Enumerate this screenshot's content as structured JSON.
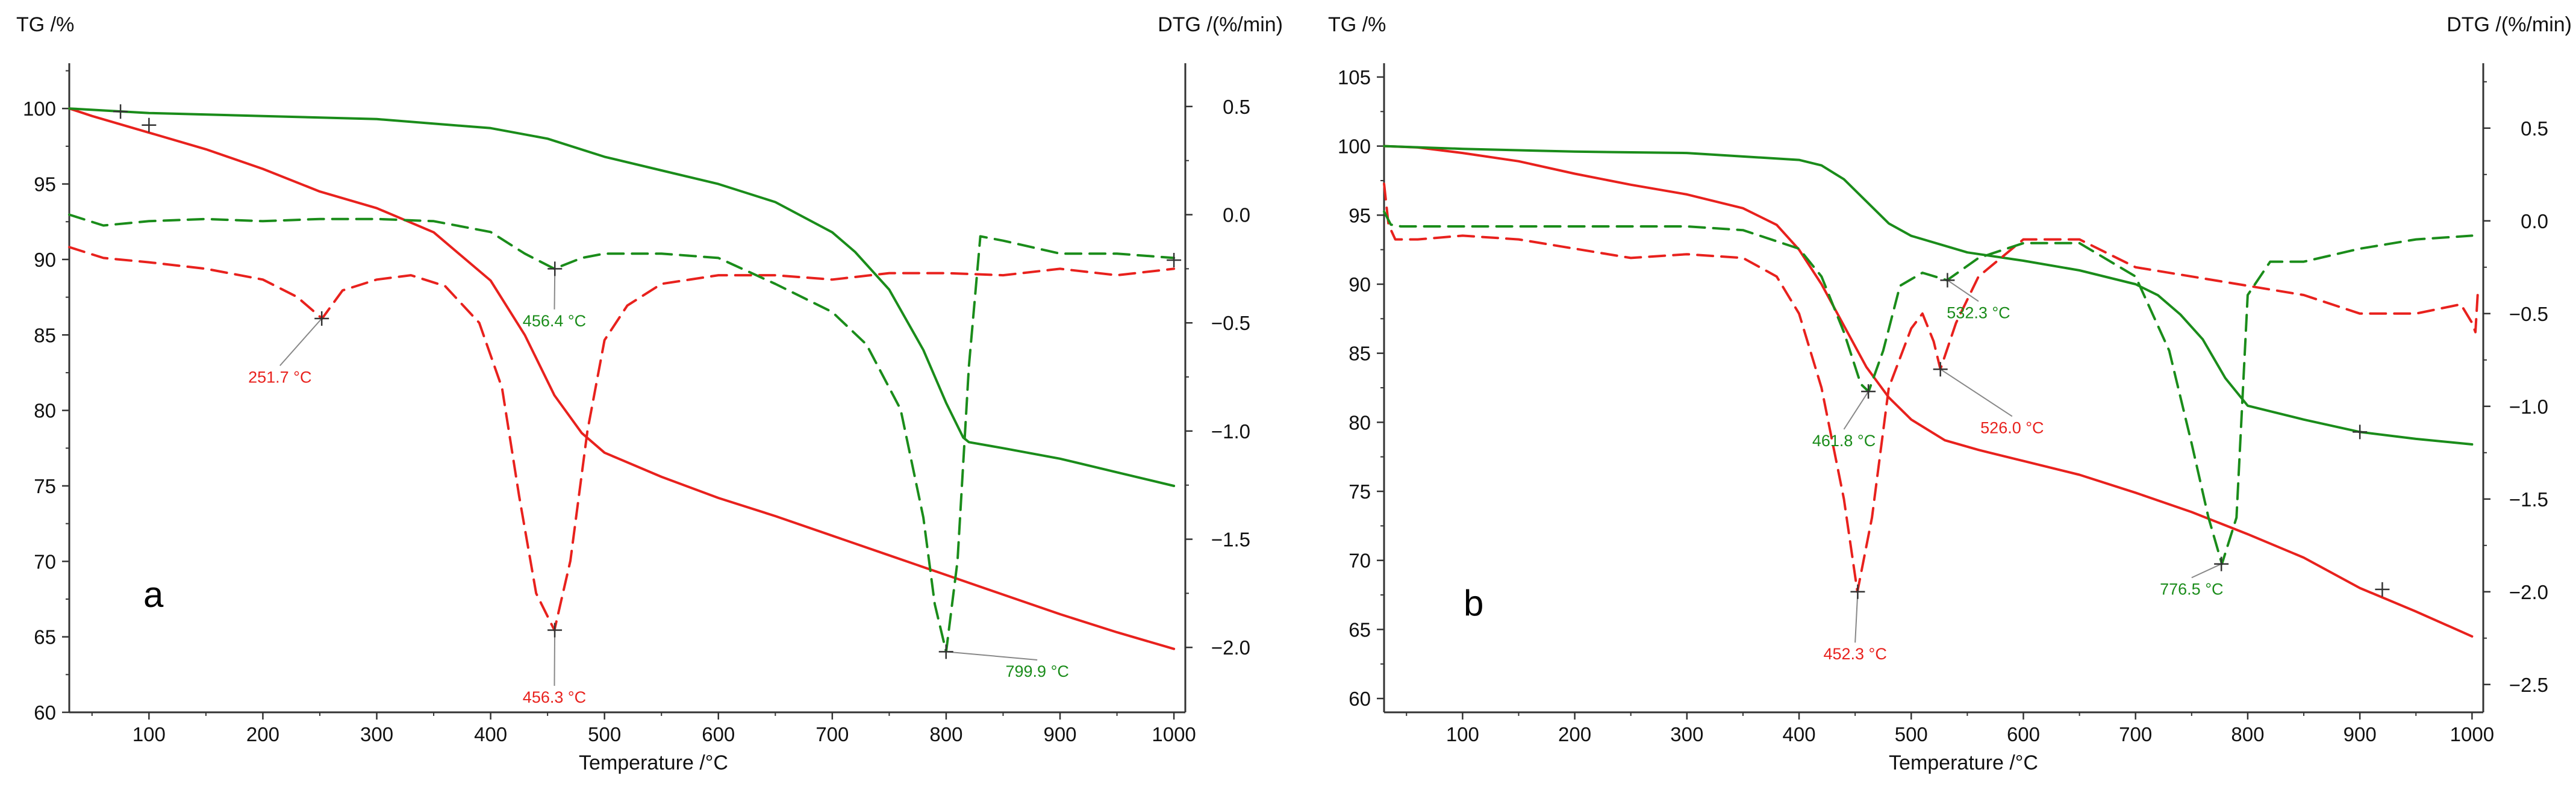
{
  "chart_data": [
    {
      "panel": "a",
      "type": "line",
      "xlabel": "Temperature /°C",
      "ylabel_left": "TG /%",
      "ylabel_right": "DTG /(%/min)",
      "xlim": [
        30,
        1010
      ],
      "ylim_left": [
        60,
        103
      ],
      "ylim_right": [
        -2.3,
        0.7
      ],
      "xticks": [
        100,
        200,
        300,
        400,
        500,
        600,
        700,
        800,
        900,
        1000
      ],
      "yticks_left": [
        60,
        65,
        70,
        75,
        80,
        85,
        90,
        95,
        100
      ],
      "yticks_right": [
        -2.0,
        -1.5,
        -1.0,
        -0.5,
        0.0,
        0.5
      ],
      "ytick_labels_left": [
        "60",
        "65",
        "70",
        "75",
        "80",
        "85",
        "90",
        "95",
        "100"
      ],
      "ytick_labels_right": [
        "−2.0",
        "−1.5",
        "−1.0",
        "−0.5",
        "0.0",
        "0.5"
      ],
      "series": [
        {
          "name": "TG red",
          "axis": "left",
          "color": "#e8211d",
          "dash": false,
          "x": [
            30,
            50,
            100,
            150,
            200,
            250,
            300,
            350,
            400,
            430,
            456,
            480,
            500,
            550,
            600,
            650,
            700,
            750,
            800,
            850,
            900,
            950,
            1000
          ],
          "y": [
            100.0,
            99.5,
            98.4,
            97.3,
            96.0,
            94.5,
            93.4,
            91.8,
            88.6,
            85.0,
            81.0,
            78.5,
            77.2,
            75.6,
            74.2,
            73.0,
            71.7,
            70.4,
            69.1,
            67.8,
            66.5,
            65.3,
            64.2
          ]
        },
        {
          "name": "TG green",
          "axis": "left",
          "color": "#1a8c1a",
          "dash": false,
          "x": [
            30,
            100,
            200,
            300,
            400,
            450,
            500,
            550,
            600,
            650,
            700,
            720,
            750,
            780,
            800,
            815,
            820,
            850,
            900,
            950,
            1000
          ],
          "y": [
            100.0,
            99.7,
            99.5,
            99.3,
            98.7,
            98.0,
            96.8,
            95.9,
            95.0,
            93.8,
            91.8,
            90.5,
            88.0,
            84.0,
            80.5,
            78.2,
            77.9,
            77.5,
            76.8,
            75.9,
            75.0
          ]
        },
        {
          "name": "DTG red",
          "axis": "right",
          "color": "#e8211d",
          "dash": true,
          "x": [
            30,
            60,
            100,
            150,
            200,
            230,
            252,
            270,
            300,
            330,
            360,
            390,
            410,
            425,
            440,
            456,
            470,
            485,
            500,
            520,
            550,
            600,
            650,
            700,
            750,
            800,
            850,
            900,
            950,
            1000
          ],
          "y": [
            -0.15,
            -0.2,
            -0.22,
            -0.25,
            -0.3,
            -0.38,
            -0.48,
            -0.35,
            -0.3,
            -0.28,
            -0.33,
            -0.5,
            -0.8,
            -1.3,
            -1.75,
            -1.92,
            -1.6,
            -1.0,
            -0.58,
            -0.42,
            -0.32,
            -0.28,
            -0.28,
            -0.3,
            -0.27,
            -0.27,
            -0.28,
            -0.25,
            -0.28,
            -0.25
          ]
        },
        {
          "name": "DTG green",
          "axis": "right",
          "color": "#1a8c1a",
          "dash": true,
          "x": [
            30,
            60,
            100,
            150,
            200,
            250,
            300,
            350,
            400,
            430,
            456,
            480,
            500,
            550,
            600,
            650,
            700,
            730,
            760,
            780,
            790,
            800,
            810,
            820,
            830,
            850,
            900,
            950,
            1000
          ],
          "y": [
            -0.0,
            -0.05,
            -0.03,
            -0.02,
            -0.03,
            -0.02,
            -0.02,
            -0.03,
            -0.08,
            -0.18,
            -0.25,
            -0.2,
            -0.18,
            -0.18,
            -0.2,
            -0.32,
            -0.45,
            -0.6,
            -0.9,
            -1.4,
            -1.8,
            -2.02,
            -1.6,
            -0.7,
            -0.1,
            -0.12,
            -0.18,
            -0.18,
            -0.2
          ]
        }
      ],
      "annotations": [
        {
          "text": "251.7 °C",
          "color": "#e8211d",
          "x": 251.7,
          "y": -0.48,
          "axis": "right",
          "label_x": 215,
          "label_y": -0.72
        },
        {
          "text": "456.3 °C",
          "color": "#e8211d",
          "x": 456.3,
          "y": -1.92,
          "axis": "right",
          "label_x": 456,
          "label_y": -2.2
        },
        {
          "text": "456.4 °C",
          "color": "#1a8c1a",
          "x": 456.4,
          "y": -0.25,
          "axis": "right",
          "label_x": 456,
          "label_y": -0.46
        },
        {
          "text": "799.9 °C",
          "color": "#1a8c1a",
          "x": 799.9,
          "y": -2.02,
          "axis": "right",
          "label_x": 880,
          "label_y": -2.08
        }
      ],
      "tick_markers": [
        {
          "x": 75,
          "y": 99.8,
          "axis": "left"
        },
        {
          "x": 100,
          "y": 98.9,
          "axis": "left"
        },
        {
          "x": 1000,
          "y": -0.21,
          "axis": "right"
        }
      ]
    },
    {
      "panel": "b",
      "type": "line",
      "xlabel": "Temperature /°C",
      "ylabel_left": "TG /%",
      "ylabel_right": "DTG /(%/min)",
      "xlim": [
        30,
        1010
      ],
      "ylim_left": [
        59,
        106
      ],
      "ylim_right": [
        -2.65,
        0.85
      ],
      "xticks": [
        100,
        200,
        300,
        400,
        500,
        600,
        700,
        800,
        900,
        1000
      ],
      "yticks_left": [
        60,
        65,
        70,
        75,
        80,
        85,
        90,
        95,
        100,
        105
      ],
      "yticks_right": [
        -2.5,
        -2.0,
        -1.5,
        -1.0,
        -0.5,
        0.0,
        0.5
      ],
      "ytick_labels_left": [
        "60",
        "65",
        "70",
        "75",
        "80",
        "85",
        "90",
        "95",
        "100",
        "105"
      ],
      "ytick_labels_right": [
        "−2.5",
        "−2.0",
        "−1.5",
        "−1.0",
        "−0.5",
        "0.0",
        "0.5"
      ],
      "series": [
        {
          "name": "TG red",
          "axis": "left",
          "color": "#e8211d",
          "dash": false,
          "x": [
            30,
            60,
            100,
            150,
            200,
            250,
            300,
            350,
            380,
            400,
            420,
            440,
            460,
            480,
            500,
            530,
            560,
            600,
            650,
            700,
            750,
            800,
            850,
            900,
            950,
            1000
          ],
          "y": [
            100.0,
            99.9,
            99.5,
            98.9,
            98.0,
            97.2,
            96.5,
            95.5,
            94.3,
            92.5,
            90.0,
            87.0,
            84.0,
            81.8,
            80.2,
            78.7,
            78.0,
            77.2,
            76.2,
            74.9,
            73.5,
            71.9,
            70.2,
            68.0,
            66.3,
            64.5
          ]
        },
        {
          "name": "TG green",
          "axis": "left",
          "color": "#1a8c1a",
          "dash": false,
          "x": [
            30,
            100,
            200,
            300,
            400,
            420,
            440,
            460,
            480,
            500,
            550,
            600,
            650,
            700,
            720,
            740,
            760,
            780,
            800,
            850,
            900,
            950,
            1000
          ],
          "y": [
            100.0,
            99.8,
            99.6,
            99.5,
            99.0,
            98.6,
            97.6,
            96.0,
            94.4,
            93.5,
            92.3,
            91.7,
            91.0,
            90.0,
            89.2,
            87.8,
            86.0,
            83.2,
            81.2,
            80.2,
            79.3,
            78.8,
            78.4
          ]
        },
        {
          "name": "DTG red",
          "axis": "right",
          "color": "#e8211d",
          "dash": true,
          "x": [
            30,
            34,
            40,
            60,
            100,
            150,
            200,
            250,
            300,
            350,
            380,
            400,
            420,
            440,
            452,
            465,
            480,
            500,
            510,
            520,
            526,
            540,
            560,
            600,
            650,
            700,
            750,
            800,
            850,
            900,
            950,
            990,
            1000,
            1003,
            1005
          ],
          "y": [
            0.2,
            -0.02,
            -0.1,
            -0.1,
            -0.08,
            -0.1,
            -0.15,
            -0.2,
            -0.18,
            -0.2,
            -0.3,
            -0.5,
            -0.9,
            -1.5,
            -2.0,
            -1.6,
            -0.9,
            -0.58,
            -0.5,
            -0.65,
            -0.8,
            -0.55,
            -0.3,
            -0.1,
            -0.1,
            -0.25,
            -0.3,
            -0.35,
            -0.4,
            -0.5,
            -0.5,
            -0.45,
            -0.55,
            -0.6,
            -0.4
          ]
        },
        {
          "name": "DTG green",
          "axis": "right",
          "color": "#1a8c1a",
          "dash": true,
          "x": [
            30,
            36,
            45,
            100,
            200,
            300,
            350,
            400,
            420,
            440,
            455,
            462,
            475,
            490,
            510,
            532,
            560,
            600,
            650,
            700,
            730,
            750,
            765,
            777,
            790,
            800,
            820,
            850,
            900,
            950,
            1000
          ],
          "y": [
            0.05,
            -0.02,
            -0.03,
            -0.03,
            -0.03,
            -0.03,
            -0.05,
            -0.15,
            -0.3,
            -0.6,
            -0.88,
            -0.92,
            -0.7,
            -0.35,
            -0.28,
            -0.32,
            -0.2,
            -0.12,
            -0.12,
            -0.3,
            -0.7,
            -1.2,
            -1.6,
            -1.85,
            -1.6,
            -0.4,
            -0.22,
            -0.22,
            -0.15,
            -0.1,
            -0.08
          ]
        }
      ],
      "annotations": [
        {
          "text": "461.8 °C",
          "color": "#1a8c1a",
          "x": 461.8,
          "y": -0.92,
          "axis": "right",
          "label_x": 440,
          "label_y": -1.15
        },
        {
          "text": "532.3 °C",
          "color": "#1a8c1a",
          "x": 532.3,
          "y": -0.32,
          "axis": "right",
          "label_x": 560,
          "label_y": -0.46
        },
        {
          "text": "526.0 °C",
          "color": "#e8211d",
          "x": 526.0,
          "y": -0.8,
          "axis": "right",
          "label_x": 590,
          "label_y": -1.08
        },
        {
          "text": "452.3 °C",
          "color": "#e8211d",
          "x": 452.3,
          "y": -2.0,
          "axis": "right",
          "label_x": 450,
          "label_y": -2.3
        },
        {
          "text": "776.5 °C",
          "color": "#1a8c1a",
          "x": 776.5,
          "y": -1.85,
          "axis": "right",
          "label_x": 750,
          "label_y": -1.95
        }
      ],
      "tick_markers": [
        {
          "x": 900,
          "y": 79.3,
          "axis": "left"
        },
        {
          "x": 920,
          "y": 67.9,
          "axis": "left"
        }
      ]
    }
  ],
  "panels": [
    {
      "label": "a",
      "xlabel": "Temperature /°C",
      "ylabel_left": "TG /%",
      "ylabel_right": "DTG /(%/min)",
      "xtick_labels": [
        "100",
        "200",
        "300",
        "400",
        "500",
        "600",
        "700",
        "800",
        "900",
        "1000"
      ]
    },
    {
      "label": "b",
      "xlabel": "Temperature /°C",
      "ylabel_left": "TG /%",
      "ylabel_right": "DTG /(%/min)",
      "xtick_labels": [
        "100",
        "200",
        "300",
        "400",
        "500",
        "600",
        "700",
        "800",
        "900",
        "1000"
      ]
    }
  ]
}
